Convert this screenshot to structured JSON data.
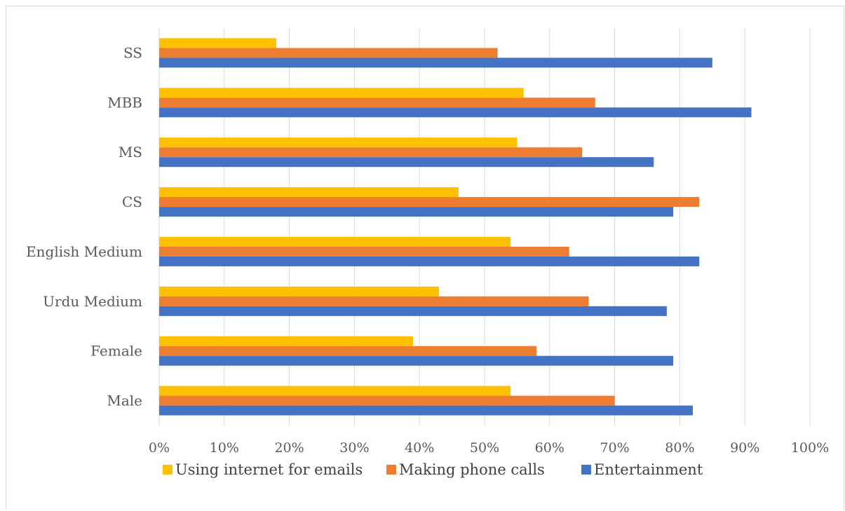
{
  "chart_data": {
    "type": "bar",
    "orientation": "horizontal",
    "categories": [
      "Male",
      "Female",
      "Urdu Medium",
      "English Medium",
      "CS",
      "MS",
      "MBB",
      "SS"
    ],
    "series": [
      {
        "name": "Entertainment",
        "color": "#4472C4",
        "values": [
          82,
          79,
          78,
          83,
          79,
          76,
          91,
          85
        ]
      },
      {
        "name": "Making phone calls",
        "color": "#ED7D31",
        "values": [
          70,
          58,
          66,
          63,
          83,
          65,
          67,
          52
        ]
      },
      {
        "name": "Using internet for emails",
        "color": "#FFC000",
        "values": [
          54,
          39,
          43,
          54,
          46,
          55,
          56,
          18
        ]
      }
    ],
    "xlim": [
      0,
      100
    ],
    "x_ticks": [
      "0%",
      "10%",
      "20%",
      "30%",
      "40%",
      "50%",
      "60%",
      "70%",
      "80%",
      "90%",
      "100%"
    ],
    "legend_order": [
      "Using internet for emails",
      "Making phone calls",
      "Entertainment"
    ],
    "legend_position": "bottom",
    "grid": true
  }
}
